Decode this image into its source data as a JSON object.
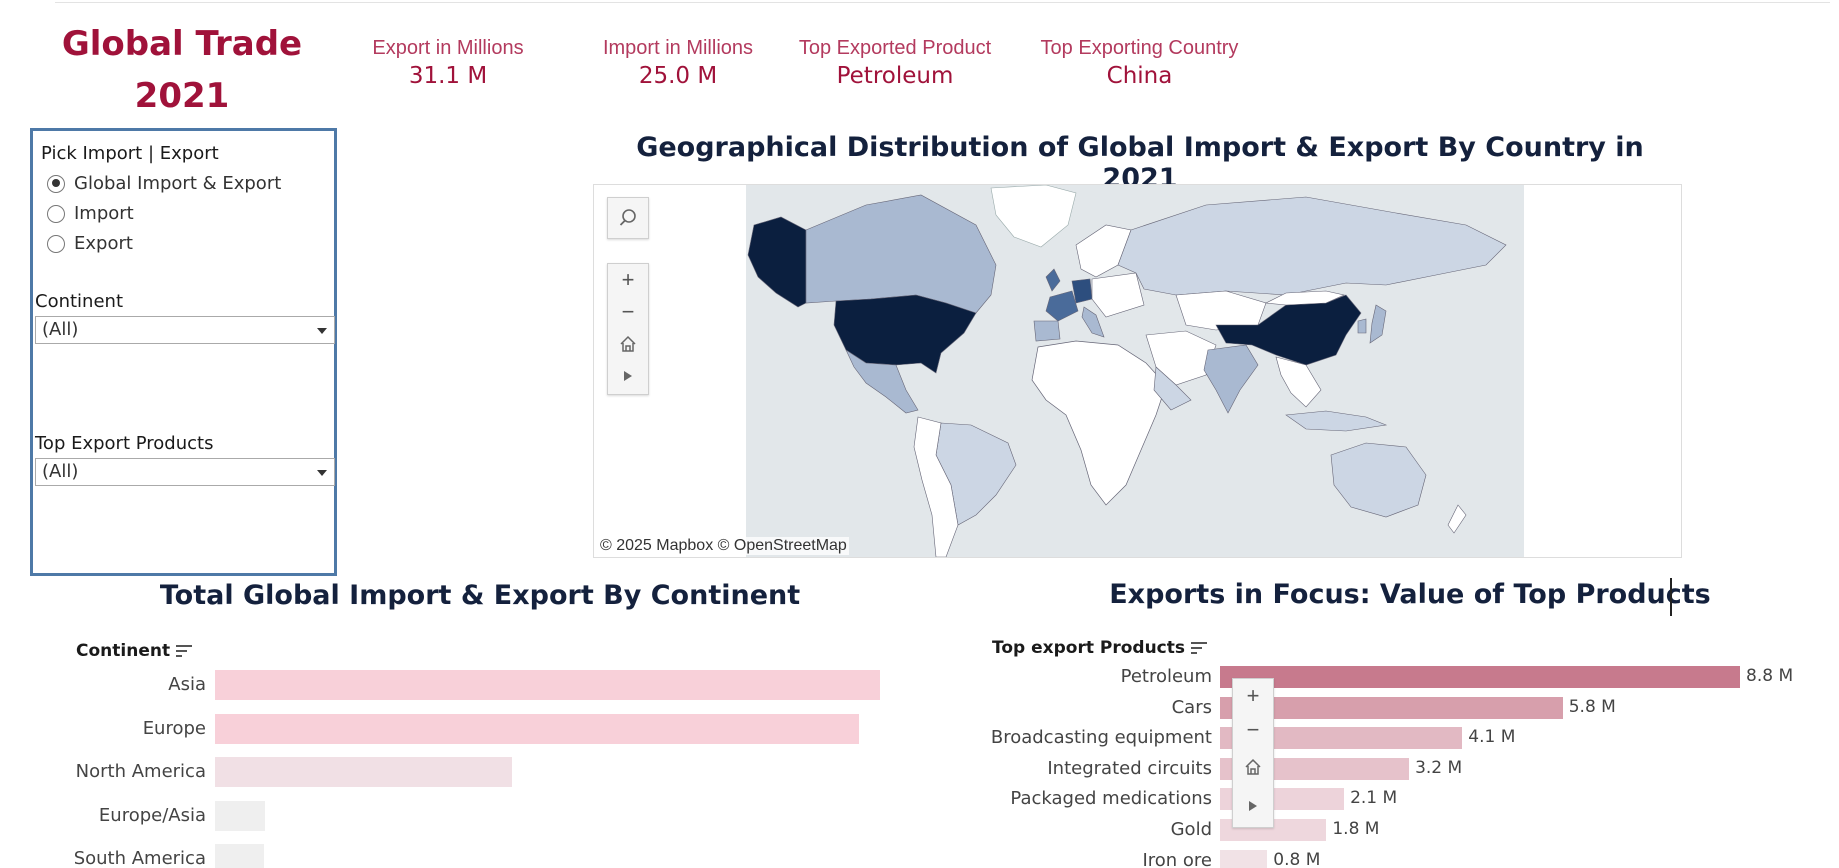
{
  "dashboard": {
    "title_line1": "Global Trade",
    "title_line2": "2021"
  },
  "kpis": [
    {
      "label": "Export in Millions",
      "value": "31.1 M"
    },
    {
      "label": "Import in Millions",
      "value": "25.0 M"
    },
    {
      "label": "Top  Exported Product",
      "value": "Petroleum"
    },
    {
      "label": "Top  Exporting Country",
      "value": "China"
    }
  ],
  "filters": {
    "radio_title": "Pick Import | Export",
    "radio_options": [
      "Global Import & Export",
      "Import",
      "Export"
    ],
    "radio_selected": "Global Import & Export",
    "continent_label": "Continent",
    "continent_value": "(All)",
    "products_label": "Top Export Products",
    "products_value": "(All)"
  },
  "map": {
    "title": "Geographical Distribution of Global Import & Export By Country in 2021",
    "attribution": "© 2025 Mapbox  © OpenStreetMap",
    "tools": [
      "search-icon",
      "zoom-in-icon",
      "zoom-out-icon",
      "home-icon",
      "play-icon"
    ],
    "colors": {
      "water": "#e2e7ea",
      "high": "#0b1f3f",
      "mid": "#4a6b9a",
      "low": "#a9b9d1",
      "lowest": "#ccd6e4",
      "none": "#ffffff"
    }
  },
  "continent_chart": {
    "title": "Total Global Import & Export By Continent",
    "axis_header": "Continent",
    "chart_data": {
      "type": "bar",
      "orientation": "horizontal",
      "title": "Total Global Import & Export By Continent",
      "categories": [
        "Asia",
        "Europe",
        "North America",
        "Europe/Asia",
        "South America"
      ],
      "values": [
        100,
        96.8,
        44.6,
        7.5,
        7.3
      ],
      "value_unit": "relative (no axis shown)",
      "colors": [
        "#f8d0d9",
        "#f8d0d9",
        "#f1e0e5",
        "#efefef",
        "#efefef"
      ]
    }
  },
  "products_chart": {
    "title": "Exports in Focus: Value of Top Products",
    "axis_header": "Top export Products",
    "chart_data": {
      "type": "bar",
      "orientation": "horizontal",
      "title": "Exports in Focus: Value of Top Products",
      "categories": [
        "Petroleum",
        "Cars",
        "Broadcasting equipment",
        "Integrated circuits",
        "Packaged medications",
        "Gold",
        "Iron ore"
      ],
      "values": [
        8.8,
        5.8,
        4.1,
        3.2,
        2.1,
        1.8,
        0.8
      ],
      "labels": [
        "8.8 M",
        "5.8 M",
        "4.1 M",
        "3.2 M",
        "2.1 M",
        "1.8 M",
        "0.8 M"
      ],
      "unit": "M",
      "colors": [
        "#c77a8d",
        "#d79fac",
        "#e2b9c3",
        "#e6c2cb",
        "#edd3da",
        "#eed7dd",
        "#f1e2e6"
      ]
    },
    "tools": [
      "zoom-in-icon",
      "zoom-out-icon",
      "home-icon",
      "play-icon"
    ]
  }
}
